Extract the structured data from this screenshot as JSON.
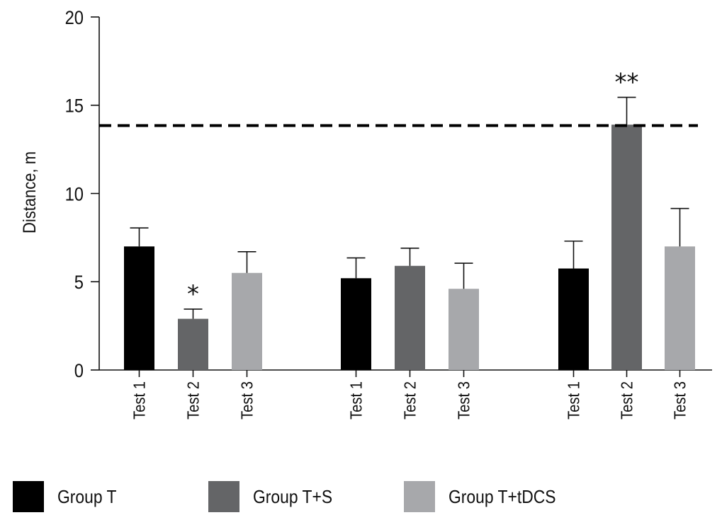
{
  "chart_data": {
    "type": "bar",
    "title": "",
    "xlabel": "",
    "ylabel": "Distance, m",
    "ylim": [
      0,
      20
    ],
    "yticks": [
      0,
      5,
      10,
      15,
      20
    ],
    "grid": false,
    "legend_position": "bottom",
    "groups": [
      {
        "categories": [
          "Test 1",
          "Test 2",
          "Test 3"
        ],
        "series_values": [
          7.0,
          2.9,
          5.5
        ],
        "error_upper": [
          8.05,
          3.45,
          6.7
        ],
        "series": [
          "Group T",
          "Group T+S",
          "Group T+tDCS"
        ],
        "annotations": [
          "",
          "*",
          ""
        ]
      },
      {
        "categories": [
          "Test 1",
          "Test 2",
          "Test 3"
        ],
        "series_values": [
          5.2,
          5.9,
          4.6
        ],
        "error_upper": [
          6.35,
          6.9,
          6.05
        ],
        "series": [
          "Group T",
          "Group T+S",
          "Group T+tDCS"
        ],
        "annotations": [
          "",
          "",
          ""
        ]
      },
      {
        "categories": [
          "Test 1",
          "Test 2",
          "Test 3"
        ],
        "series_values": [
          5.75,
          13.9,
          7.0
        ],
        "error_upper": [
          7.3,
          15.45,
          9.15
        ],
        "series": [
          "Group T",
          "Group T+S",
          "Group T+tDCS"
        ],
        "annotations": [
          "",
          "**",
          ""
        ]
      }
    ],
    "reference_line": {
      "value": 13.85,
      "style": "dashed"
    },
    "legend": [
      {
        "label": "Group T",
        "color": "#000000"
      },
      {
        "label": "Group T+S",
        "color": "#646567"
      },
      {
        "label": "Group T+tDCS",
        "color": "#a7a8ab"
      }
    ]
  }
}
